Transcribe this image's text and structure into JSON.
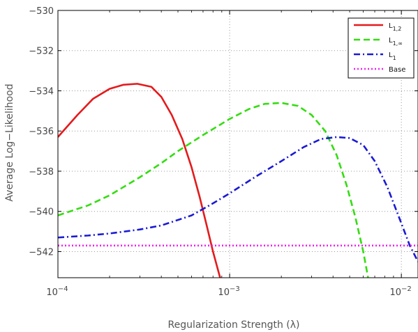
{
  "chart_data": {
    "type": "line",
    "xlabel": "Regularization Strength (λ)",
    "ylabel": "Average Log−Likelihood",
    "x_scale": "log",
    "xlim": [
      0.0001,
      0.0125
    ],
    "ylim": [
      -543.3,
      -530
    ],
    "grid": true,
    "legend_position": "top-right",
    "x_ticks": [
      {
        "value": 0.0001,
        "base": "10",
        "exp": "−4"
      },
      {
        "value": 0.001,
        "base": "10",
        "exp": "−3"
      },
      {
        "value": 0.01,
        "base": "10",
        "exp": "−2"
      }
    ],
    "y_ticks": [
      {
        "value": -530,
        "label": "−530"
      },
      {
        "value": -532,
        "label": "−532"
      },
      {
        "value": -534,
        "label": "−534"
      },
      {
        "value": -536,
        "label": "−536"
      },
      {
        "value": -538,
        "label": "−538"
      },
      {
        "value": -540,
        "label": "−540"
      },
      {
        "value": -542,
        "label": "−542"
      }
    ],
    "series": [
      {
        "name": "L1,2",
        "legend_main": "L",
        "legend_sub": "1,2",
        "color": "#e41a1c",
        "style": "solid",
        "x": [
          0.0001,
          0.00013,
          0.00016,
          0.0002,
          0.00024,
          0.00029,
          0.00035,
          0.0004,
          0.00046,
          0.00053,
          0.0006,
          0.00067,
          0.00074,
          0.0008,
          0.00088
        ],
        "y": [
          -536.3,
          -535.2,
          -534.4,
          -533.9,
          -533.7,
          -533.65,
          -533.8,
          -534.3,
          -535.2,
          -536.4,
          -537.8,
          -539.3,
          -540.8,
          -542.0,
          -543.3
        ]
      },
      {
        "name": "L1,∞",
        "legend_main": "L",
        "legend_sub": "1,∞",
        "color": "#33dd11",
        "style": "dashed",
        "x": [
          0.0001,
          0.00015,
          0.0002,
          0.0003,
          0.0004,
          0.0005,
          0.0007,
          0.001,
          0.0013,
          0.0016,
          0.002,
          0.0025,
          0.003,
          0.0036,
          0.0042,
          0.0048,
          0.0054,
          0.006,
          0.0064
        ],
        "y": [
          -540.2,
          -539.7,
          -539.2,
          -538.3,
          -537.6,
          -537.0,
          -536.2,
          -535.4,
          -534.9,
          -534.65,
          -534.6,
          -534.75,
          -535.2,
          -536.0,
          -537.2,
          -538.7,
          -540.3,
          -542.0,
          -543.3
        ]
      },
      {
        "name": "L1",
        "legend_main": "L",
        "legend_sub": "1",
        "color": "#1a1ad4",
        "style": "dashdot",
        "x": [
          0.0001,
          0.00015,
          0.0002,
          0.0003,
          0.0004,
          0.0006,
          0.0008,
          0.001,
          0.0014,
          0.002,
          0.0027,
          0.0034,
          0.0042,
          0.005,
          0.006,
          0.007,
          0.0083,
          0.0098,
          0.0112,
          0.0125
        ],
        "y": [
          -541.3,
          -541.2,
          -541.1,
          -540.9,
          -540.7,
          -540.2,
          -539.6,
          -539.1,
          -538.3,
          -537.5,
          -536.8,
          -536.4,
          -536.3,
          -536.35,
          -536.7,
          -537.5,
          -538.8,
          -540.4,
          -541.7,
          -542.5
        ]
      },
      {
        "name": "Base",
        "legend_main": "Base",
        "legend_sub": "",
        "color": "#ee22ee",
        "style": "dotted",
        "x": [
          0.0001,
          0.0125
        ],
        "y": [
          -541.7,
          -541.7
        ]
      }
    ]
  }
}
